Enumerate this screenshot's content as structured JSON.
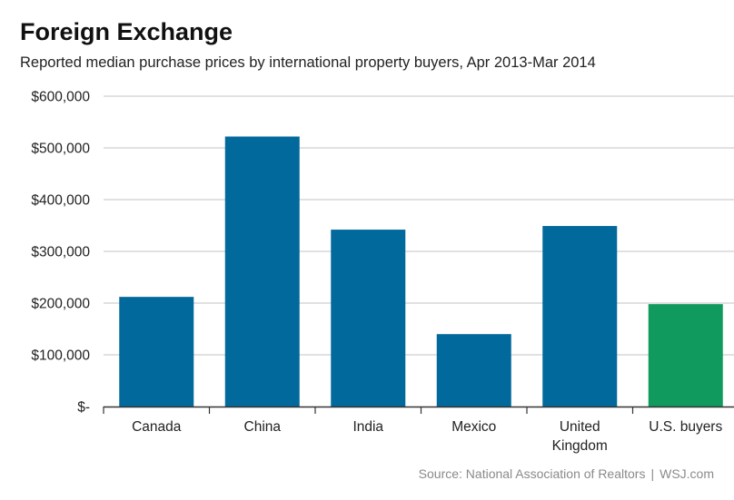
{
  "header": {
    "title": "Foreign Exchange",
    "subtitle": "Reported median purchase prices by international property buyers, Apr 2013-Mar 2014"
  },
  "source": {
    "text": "Source: National Association of Realtors",
    "separator": "|",
    "site": "WSJ.com"
  },
  "colors": {
    "primary_bar": "#02699c",
    "highlight_bar": "#109a5e",
    "gridline": "#cfcfcf",
    "axis": "#333333"
  },
  "chart_data": {
    "type": "bar",
    "title": "Foreign Exchange",
    "subtitle": "Reported median purchase prices by international property buyers, Apr 2013-Mar 2014",
    "xlabel": "",
    "ylabel": "",
    "categories": [
      [
        "Canada"
      ],
      [
        "China"
      ],
      [
        "India"
      ],
      [
        "Mexico"
      ],
      [
        "United",
        "Kingdom"
      ],
      [
        "U.S. buyers"
      ]
    ],
    "values": [
      212000,
      522000,
      342000,
      140000,
      349000,
      198000
    ],
    "highlight": [
      false,
      false,
      false,
      false,
      false,
      true
    ],
    "ylim": [
      0,
      600000
    ],
    "yticks": [
      0,
      100000,
      200000,
      300000,
      400000,
      500000,
      600000
    ],
    "ytick_labels": [
      "$-",
      "$100,000",
      "$200,000",
      "$300,000",
      "$400,000",
      "$500,000",
      "$600,000"
    ],
    "grid": true,
    "legend": "none"
  }
}
